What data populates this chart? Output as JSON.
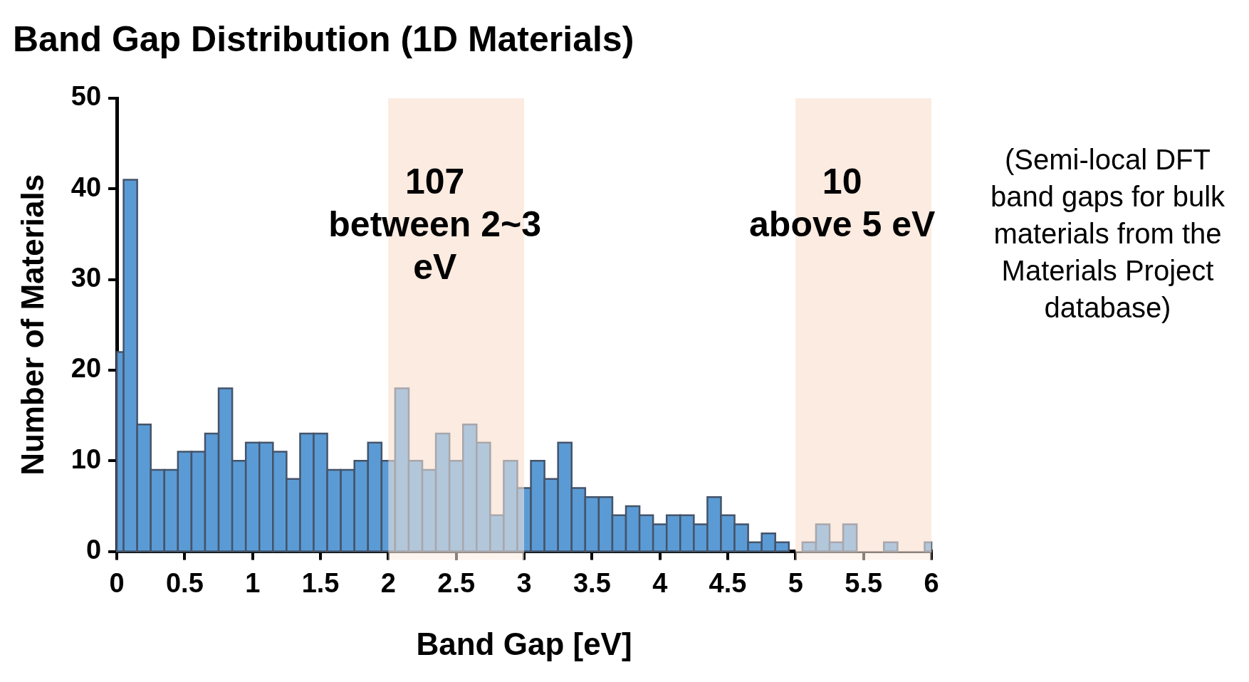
{
  "chart_data": {
    "type": "histogram",
    "title": "Band Gap Distribution (1D Materials)",
    "xlabel": "Band Gap [eV]",
    "ylabel": "Number of Materials",
    "bins": [
      0,
      0.05,
      0.15,
      0.25,
      0.35,
      0.45,
      0.55,
      0.65,
      0.75,
      0.85,
      0.95,
      1.05,
      1.15,
      1.25,
      1.35,
      1.45,
      1.55,
      1.65,
      1.75,
      1.85,
      1.95,
      2.05,
      2.15,
      2.25,
      2.35,
      2.45,
      2.55,
      2.65,
      2.75,
      2.85,
      2.95,
      3.05,
      3.15,
      3.25,
      3.35,
      3.45,
      3.55,
      3.65,
      3.75,
      3.85,
      3.95,
      4.05,
      4.15,
      4.25,
      4.35,
      4.45,
      4.55,
      4.65,
      4.75,
      4.85,
      4.95,
      5.05,
      5.15,
      5.25,
      5.35,
      5.45,
      5.65,
      5.75,
      5.95,
      6
    ],
    "values": [
      22,
      41,
      14,
      9,
      9,
      11,
      11,
      13,
      18,
      10,
      12,
      12,
      11,
      8,
      13,
      13,
      9,
      9,
      10,
      12,
      10,
      18,
      10,
      9,
      13,
      10,
      14,
      12,
      4,
      10,
      7,
      10,
      8,
      12,
      7,
      6,
      6,
      4,
      5,
      4,
      3,
      4,
      4,
      3,
      6,
      4,
      3,
      1,
      2,
      1,
      0,
      1,
      3,
      1,
      3,
      0,
      1,
      0,
      1
    ],
    "color": "#5b9bd5",
    "xlim": [
      0,
      6
    ],
    "xticks": [
      0,
      0.5,
      1,
      1.5,
      2,
      2.5,
      3,
      3.5,
      4,
      4.5,
      5,
      5.5,
      6
    ],
    "ylim": [
      0,
      50
    ],
    "yticks": [
      0,
      10,
      20,
      30,
      40,
      50
    ],
    "grid": false,
    "bands": [
      {
        "axis": "x",
        "from": 2,
        "to": 3,
        "label": "107\nbetween 2~3\neV",
        "color": "#fbebe0"
      },
      {
        "axis": "x",
        "from": 5,
        "to": 6,
        "label": "10\nabove 5 eV",
        "color": "#fbebe0"
      }
    ],
    "annotations": [
      "(Semi-local DFT band gaps for bulk materials from the Materials Project database)"
    ]
  }
}
